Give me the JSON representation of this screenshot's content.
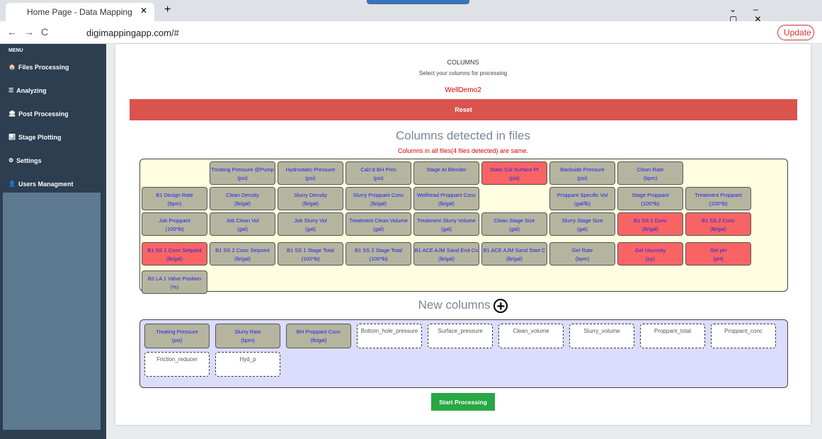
{
  "browser": {
    "tab_title": "Home Page - Data Mapping",
    "url": "digimappingapp.com/#",
    "update": "Update"
  },
  "sidebar": {
    "menu": "MENU",
    "items": [
      "Files Processing",
      "Analyzing",
      "Post Processing",
      "Stage Plotting",
      "Settings",
      "Users Managment"
    ]
  },
  "main": {
    "heading": "COLUMNS",
    "subheading": "Select your columns for processing",
    "well": "WellDemo2",
    "reset": "Reset",
    "detected_title": "Columns detected in files",
    "detected_note": "Columns in all files(4 files detected) are same.",
    "detected": [
      {
        "label": "Treating Pressure @Pump",
        "unit": "(psi)"
      },
      {
        "label": "Hydrostatic Pressure",
        "unit": "(psi)"
      },
      {
        "label": "Calc'd BH Pres",
        "unit": "(psi)"
      },
      {
        "label": "Stage At Blender"
      },
      {
        "label": "Static Col Surface Pr",
        "unit": "(psi)",
        "highlight": true
      },
      {
        "label": "Backside Pressure",
        "unit": "(psi)"
      },
      {
        "label": "Clean Rate",
        "unit": "(bpm)"
      },
      {
        "label": "B1 Design Rate",
        "unit": "(bpm)"
      },
      {
        "label": "Clean Density",
        "unit": "(lb/gal)"
      },
      {
        "label": "Slurry Density",
        "unit": "(lb/gal)"
      },
      {
        "label": "Slurry Proppant Conc",
        "unit": "(lb/gal)"
      },
      {
        "label": "Wellhead Proppant Conc",
        "unit": "(lb/gal)"
      },
      {
        "label": "Proppant Specific Vol",
        "unit": "(gal/lb)"
      },
      {
        "label": "Stage Proppant",
        "unit": "(100*lb)"
      },
      {
        "label": "Treatment Proppant",
        "unit": "(100*lb)"
      },
      {
        "label": "Job Proppant",
        "unit": "(100*lb)"
      },
      {
        "label": "Job Clean Vol",
        "unit": "(gal)"
      },
      {
        "label": "Job Slurry Vol",
        "unit": "(gal)"
      },
      {
        "label": "Treatment Clean Volume",
        "unit": "(gal)"
      },
      {
        "label": "Treatment Slurry Volume",
        "unit": "(gal)"
      },
      {
        "label": "Clean Stage Size",
        "unit": "(gal)"
      },
      {
        "label": "Slurry Stage Size",
        "unit": "(gal)"
      },
      {
        "label": "B1 SS 1 Conc",
        "unit": "(lb/gal)",
        "highlight": true
      },
      {
        "label": "B1 SS 2 Conc",
        "unit": "(lb/gal)",
        "highlight": true
      },
      {
        "label": "B1 SS 1 Conc Setpoint",
        "unit": "(lb/gal)",
        "highlight": true
      },
      {
        "label": "B1 SS 2 Conc Setpoint",
        "unit": "(lb/gal)"
      },
      {
        "label": "B1 SS 1 Stage Total",
        "unit": "(100*lb)"
      },
      {
        "label": "B1 SS 2 Stage Total",
        "unit": "(100*lb)"
      },
      {
        "label": "B1 ACE AJM Sand End Co",
        "unit": "(lb/gal)"
      },
      {
        "label": "B1 ACE AJM Sand Start C",
        "unit": "(lb/gal)"
      },
      {
        "label": "Gel Rate",
        "unit": "(bpm)"
      },
      {
        "label": "Gel Viscosity",
        "unit": "(cp)",
        "highlight": true
      },
      {
        "label": "Gel pH",
        "unit": "(pH)",
        "highlight": true
      },
      {
        "label": "B2 LA 1 Valve Position",
        "unit": "(%)"
      }
    ],
    "new_title": "New columns",
    "mapped": [
      {
        "label": "Treating Pressure",
        "unit": "(psi)"
      },
      {
        "label": "Slurry Rate",
        "unit": "(bpm)"
      },
      {
        "label": "BH Proppant Conc",
        "unit": "(lb/gal)"
      }
    ],
    "targets": [
      "Bottom_hole_pressure",
      "Surface_pressure",
      "Clean_volume",
      "Slurry_volume",
      "Proppant_total",
      "Proppant_conc",
      "Friction_reducer",
      "Hyd_p"
    ],
    "start": "Start Processing"
  }
}
